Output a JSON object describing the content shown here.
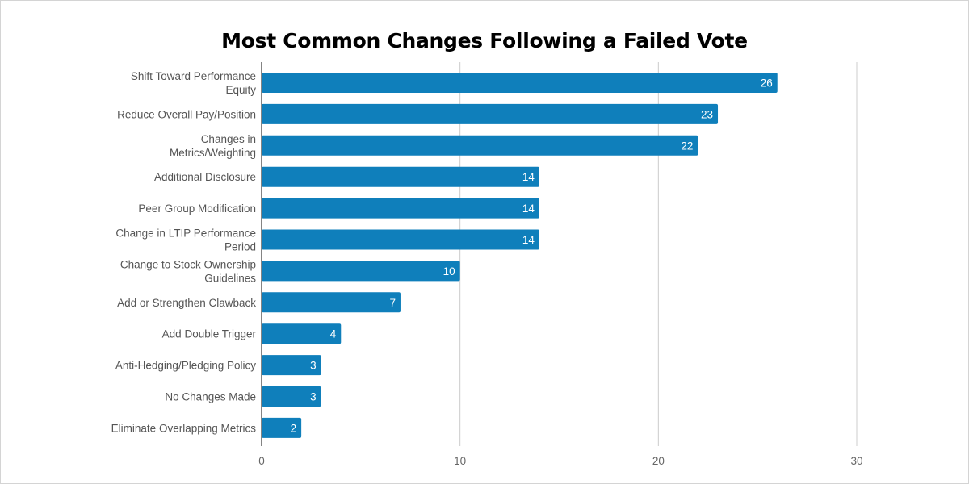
{
  "chart_data": {
    "type": "bar",
    "orientation": "horizontal",
    "title": "Most Common Changes Following a Failed Vote",
    "categories": [
      [
        "Shift Toward Performance",
        "Equity"
      ],
      [
        "Reduce Overall Pay/Position"
      ],
      [
        "Changes in",
        "Metrics/Weighting"
      ],
      [
        "Additional Disclosure"
      ],
      [
        "Peer Group Modification"
      ],
      [
        "Change in LTIP Performance",
        "Period"
      ],
      [
        "Change to Stock Ownership",
        "Guidelines"
      ],
      [
        "Add or Strengthen Clawback"
      ],
      [
        "Add Double Trigger"
      ],
      [
        "Anti-Hedging/Pledging Policy"
      ],
      [
        "No Changes Made"
      ],
      [
        "Eliminate Overlapping Metrics"
      ]
    ],
    "values": [
      26,
      23,
      22,
      14,
      14,
      14,
      10,
      7,
      4,
      3,
      3,
      2
    ],
    "xlim": [
      0,
      30
    ],
    "xticks": [
      0,
      10,
      20,
      30
    ],
    "grid": true,
    "bar_color": "#0f7fbb",
    "legend": "none"
  }
}
